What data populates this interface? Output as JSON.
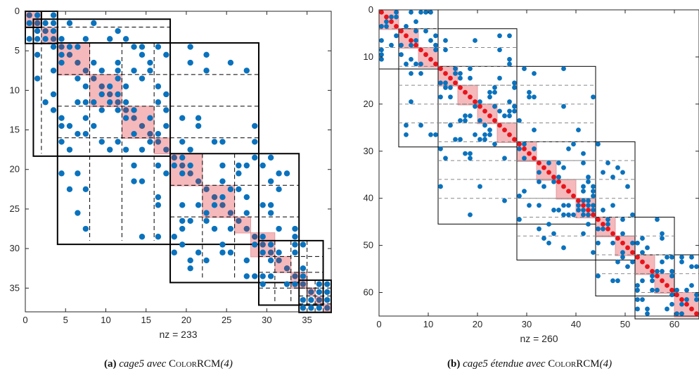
{
  "colors": {
    "dot": "#0a72bd",
    "dot_red": "#e8141b",
    "diag_block": "#f5b8bb",
    "block_border": "#000000",
    "axis": "#262626"
  },
  "chart_data": [
    {
      "type": "scatter",
      "subtype": "sparsity-pattern",
      "id": "a",
      "n": 38,
      "xlim": [
        0,
        38
      ],
      "ylim": [
        38,
        0
      ],
      "xticks": [
        0,
        5,
        10,
        15,
        20,
        25,
        30,
        35
      ],
      "yticks": [
        0,
        5,
        10,
        15,
        20,
        25,
        30,
        35
      ],
      "grid": false,
      "xlabel": "nz = 233",
      "caption": {
        "label": "(a)",
        "matrix": "cage5 avec",
        "algo": "ColorRCM",
        "param": "(4)"
      },
      "diag_blocks": [
        [
          0,
          2
        ],
        [
          2,
          4
        ],
        [
          4,
          8
        ],
        [
          8,
          12
        ],
        [
          12,
          16
        ],
        [
          16,
          18
        ],
        [
          18,
          22
        ],
        [
          22,
          26
        ],
        [
          26,
          28
        ],
        [
          28,
          31
        ],
        [
          31,
          33
        ],
        [
          33,
          35
        ],
        [
          35,
          36
        ],
        [
          36,
          37
        ],
        [
          37,
          38
        ]
      ],
      "outer_blocks": [
        [
          0,
          2
        ],
        [
          0,
          4
        ],
        [
          1,
          18
        ],
        [
          4,
          29
        ],
        [
          18,
          34
        ],
        [
          29,
          37
        ],
        [
          34,
          38
        ]
      ],
      "dashed_offsets": [
        [
          2,
          4
        ],
        [
          4,
          8,
          12,
          16
        ],
        [
          18,
          22,
          26
        ],
        [
          29,
          31,
          33,
          35
        ],
        [
          35,
          36,
          37
        ]
      ],
      "red_points": false,
      "offdiag_points_per_row": 3
    },
    {
      "type": "scatter",
      "subtype": "sparsity-pattern",
      "id": "b",
      "n": 65,
      "xlim": [
        0,
        65
      ],
      "ylim": [
        65,
        0
      ],
      "xticks": [
        0,
        10,
        20,
        30,
        40,
        50,
        60
      ],
      "yticks": [
        0,
        10,
        20,
        30,
        40,
        50,
        60
      ],
      "grid": false,
      "xlabel": "nz = 260",
      "caption": {
        "label": "(b)",
        "matrix": "cage5 étendue avec",
        "algo": "ColorRCM",
        "param": "(4)"
      },
      "diag_blocks": [
        [
          0,
          4
        ],
        [
          4,
          8
        ],
        [
          8,
          12
        ],
        [
          12,
          16
        ],
        [
          16,
          20
        ],
        [
          20,
          24
        ],
        [
          24,
          28
        ],
        [
          28,
          32
        ],
        [
          32,
          36
        ],
        [
          36,
          40
        ],
        [
          40,
          44
        ],
        [
          44,
          48
        ],
        [
          48,
          52
        ],
        [
          52,
          56
        ],
        [
          56,
          60
        ],
        [
          60,
          65
        ]
      ],
      "outer_blocks": [
        [
          0,
          12
        ],
        [
          4,
          28
        ],
        [
          12,
          44
        ],
        [
          28,
          52
        ],
        [
          44,
          60
        ],
        [
          52,
          65
        ]
      ],
      "dashed_offsets": [
        [
          4,
          8
        ],
        [
          8,
          12,
          16,
          20,
          24
        ],
        [
          16,
          20,
          24,
          28,
          32,
          36,
          40
        ],
        [
          32,
          36,
          40,
          44,
          48
        ],
        [
          48,
          52,
          56
        ],
        [
          56,
          60
        ]
      ],
      "red_points": true,
      "offdiag_points_per_row": 2
    }
  ]
}
